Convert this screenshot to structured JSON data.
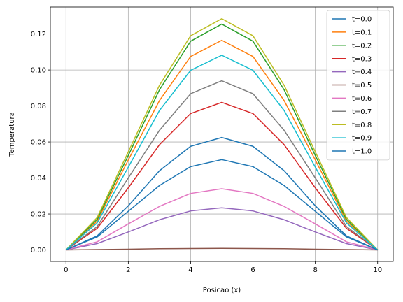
{
  "chart_data": {
    "type": "line",
    "title": "",
    "xlabel": "Posicao (x)",
    "ylabel": "Temperatura",
    "xlim": [
      -0.5,
      10.5
    ],
    "ylim": [
      -0.0064,
      0.135
    ],
    "xticks": [
      0,
      2,
      4,
      6,
      8,
      10
    ],
    "xtick_labels": [
      "0",
      "2",
      "4",
      "6",
      "8",
      "10"
    ],
    "yticks": [
      0.0,
      0.02,
      0.04,
      0.06,
      0.08,
      0.1,
      0.12
    ],
    "ytick_labels": [
      "0.00",
      "0.02",
      "0.04",
      "0.06",
      "0.08",
      "0.10",
      "0.12"
    ],
    "grid": true,
    "legend_position": "top-right",
    "x": [
      0,
      1,
      2,
      3,
      4,
      5,
      6,
      7,
      8,
      9,
      10
    ],
    "series": [
      {
        "name": "t=0.0",
        "color": "#1f77b4",
        "values": [
          0,
          0.0078,
          0.0245,
          0.044,
          0.0576,
          0.0625,
          0.0576,
          0.044,
          0.0245,
          0.0078,
          0
        ]
      },
      {
        "name": "t=0.1",
        "color": "#ff7f0e",
        "values": [
          0,
          0.016,
          0.05,
          0.083,
          0.1075,
          0.1165,
          0.1075,
          0.083,
          0.05,
          0.016,
          0
        ]
      },
      {
        "name": "t=0.2",
        "color": "#2ca02c",
        "values": [
          0,
          0.017,
          0.0525,
          0.089,
          0.116,
          0.1255,
          0.116,
          0.089,
          0.0525,
          0.017,
          0
        ]
      },
      {
        "name": "t=0.3",
        "color": "#d62728",
        "values": [
          0,
          0.012,
          0.0345,
          0.0585,
          0.0758,
          0.082,
          0.0758,
          0.0585,
          0.0345,
          0.012,
          0
        ]
      },
      {
        "name": "t=0.4",
        "color": "#9467bd",
        "values": [
          0,
          0.0035,
          0.01,
          0.0168,
          0.0217,
          0.0234,
          0.0217,
          0.0168,
          0.01,
          0.0035,
          0
        ]
      },
      {
        "name": "t=0.5",
        "color": "#8c564b",
        "values": [
          0,
          0.0002,
          0.0004,
          0.0007,
          0.0008,
          0.0009,
          0.0008,
          0.0007,
          0.0004,
          0.0002,
          0
        ]
      },
      {
        "name": "t=0.6",
        "color": "#e377c2",
        "values": [
          0,
          0.0045,
          0.0145,
          0.0242,
          0.0314,
          0.034,
          0.0314,
          0.0242,
          0.0145,
          0.0045,
          0
        ]
      },
      {
        "name": "t=0.7",
        "color": "#7f7f7f",
        "values": [
          0,
          0.013,
          0.04,
          0.0665,
          0.0868,
          0.094,
          0.0868,
          0.0665,
          0.04,
          0.013,
          0
        ]
      },
      {
        "name": "t=0.8",
        "color": "#bcbd22",
        "values": [
          0,
          0.018,
          0.0545,
          0.0915,
          0.119,
          0.1285,
          0.119,
          0.0915,
          0.0545,
          0.018,
          0
        ]
      },
      {
        "name": "t=0.9",
        "color": "#17becf",
        "values": [
          0,
          0.015,
          0.046,
          0.0775,
          0.0998,
          0.1082,
          0.0998,
          0.0775,
          0.046,
          0.015,
          0
        ]
      },
      {
        "name": "t=1.0",
        "color": "#1f77b4",
        "values": [
          0,
          0.0072,
          0.0215,
          0.0358,
          0.0463,
          0.0502,
          0.0463,
          0.0358,
          0.0215,
          0.0072,
          0
        ]
      }
    ]
  }
}
